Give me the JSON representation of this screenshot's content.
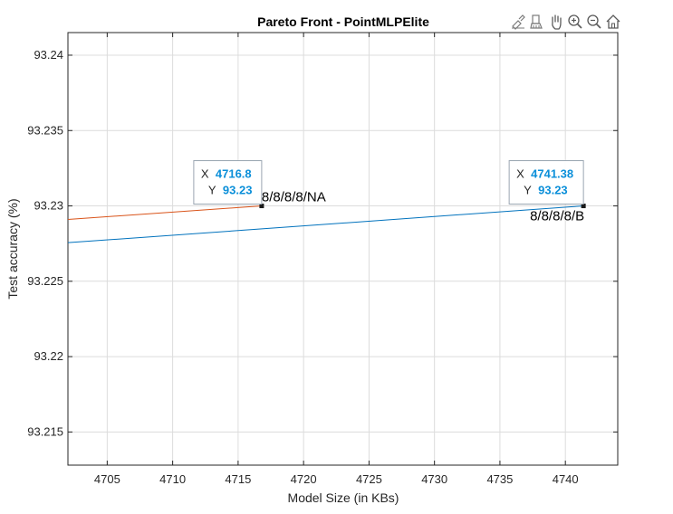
{
  "colors": {
    "series_blue": "#0072BD",
    "series_orange": "#D95319",
    "tooltip_value": "#0b8fd9",
    "grid": "#dcdcdc",
    "axis": "#262626",
    "marker": "#1a1a1a"
  },
  "toolbar": {
    "icons": [
      "brush-icon",
      "data-tips-icon",
      "pan-icon",
      "zoom-in-icon",
      "zoom-out-icon",
      "home-icon"
    ]
  },
  "chart_data": {
    "type": "line",
    "title": "Pareto Front - PointMLPElite",
    "xlabel": "Model Size (in KBs)",
    "ylabel": "Test accuracy (%)",
    "xlim": [
      4702,
      4744
    ],
    "ylim": [
      93.2128,
      93.2415
    ],
    "grid": true,
    "xticks": [
      4705,
      4710,
      4715,
      4720,
      4725,
      4730,
      4735,
      4740
    ],
    "xtick_labels": [
      "4705",
      "4710",
      "4715",
      "4720",
      "4725",
      "4730",
      "4735",
      "4740"
    ],
    "yticks": [
      93.215,
      93.22,
      93.225,
      93.23,
      93.235,
      93.24
    ],
    "ytick_labels": [
      "93.215",
      "93.22",
      "93.225",
      "93.23",
      "93.235",
      "93.24"
    ],
    "series": [
      {
        "name": "8/8/8/8/B",
        "color_key": "series_blue",
        "x": [
          4702,
          4741.38
        ],
        "y": [
          93.22756,
          93.23
        ],
        "points": [
          {
            "x": 4741.38,
            "y": 93.23,
            "label": "8/8/8/8/B",
            "label_pos": "below-left"
          }
        ]
      },
      {
        "name": "8/8/8/8/NA",
        "color_key": "series_orange",
        "x": [
          4702,
          4716.8
        ],
        "y": [
          93.2291,
          93.23
        ],
        "points": [
          {
            "x": 4716.8,
            "y": 93.23,
            "label": "8/8/8/8/NA",
            "label_pos": "above-right"
          }
        ]
      }
    ],
    "datatips": [
      {
        "x_key": "X",
        "x_value": "4716.8",
        "y_key": "Y",
        "y_value": "93.23",
        "anchor_x": 4716.8,
        "anchor_y": 93.23
      },
      {
        "x_key": "X",
        "x_value": "4741.38",
        "y_key": "Y",
        "y_value": "93.23",
        "anchor_x": 4741.38,
        "anchor_y": 93.23
      }
    ]
  }
}
